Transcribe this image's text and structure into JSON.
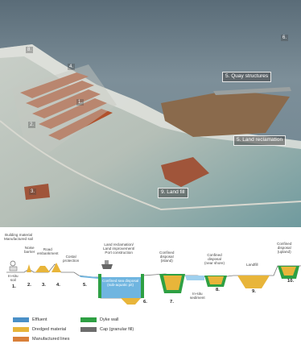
{
  "photo_labels": {
    "quay": "5. Quay structures",
    "reclamation": "5. Land reclamation",
    "landfill": "9. Land fill",
    "n6": "6.",
    "n8": "8.",
    "n4": "4.",
    "n1": "1.",
    "n2": "2.",
    "n3": "3."
  },
  "xsec": {
    "building": "Building material\nManufactured soil",
    "noise": "Noise\nbarrier",
    "road": "Road\nembankment",
    "coastal": "Costal\nprotection",
    "reclaim": "Land reclamation/\nLand improvement/\nPort construction",
    "conf_island": "Confined\ndisposal\n(island)",
    "conf_near": "Confined\ndisposal\n(near shore)",
    "landfill": "Landfill",
    "conf_upland": "Confined\ndisposal\n(upland)",
    "insitu_soil": "In-situ\nsoil",
    "insitu_sed": "In-situ\nsediment",
    "subaquatic": "Confined sea disposal\n(sub-aquatic pit)",
    "n1": "1.",
    "n2": "2.",
    "n3": "3.",
    "n4": "4.",
    "n5": "5.",
    "n6": "6.",
    "n7": "7.",
    "n8": "8.",
    "n9": "9.",
    "n10": "10."
  },
  "legend": [
    {
      "label": "Effluent",
      "color": "#4a90c8"
    },
    {
      "label": "Dyke wall",
      "color": "#2ea043"
    },
    {
      "label": "Dredged material",
      "color": "#e8b53a"
    },
    {
      "label": "Cap (granular fill)",
      "color": "#6d6d6d"
    },
    {
      "label": "Manufactured lines",
      "color": "#d9803a"
    }
  ]
}
